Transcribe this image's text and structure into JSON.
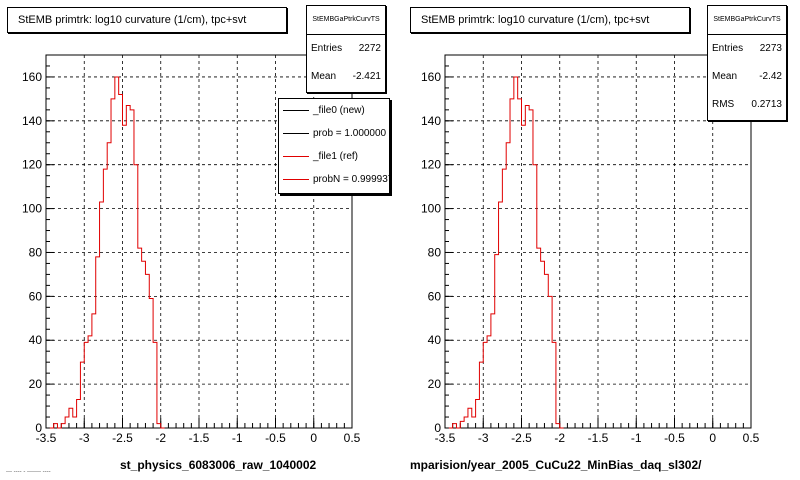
{
  "panels": [
    {
      "title": "StEMB primtrk: log10 curvature (1/cm), tpc+svt",
      "stats": {
        "name": "StEMBGaPtrkCurvTS",
        "rows": [
          {
            "key": "Entries",
            "value": "2272"
          },
          {
            "key": "Mean",
            "value": "-2.421"
          }
        ]
      },
      "legend": [
        {
          "label": "_file0 (new)",
          "color": "#000000"
        },
        {
          "label": "prob = 1.000000",
          "color": "#000000"
        },
        {
          "label": "_file1 (ref)",
          "color": "#e00000"
        },
        {
          "label": "probN = 0.999937",
          "color": "#e00000"
        }
      ],
      "x_axis_name": "st_physics_6083006_raw_1040002"
    },
    {
      "title": "StEMB primtrk: log10 curvature (1/cm), tpc+svt",
      "stats": {
        "name": "StEMBGaPtrkCurvTS",
        "rows": [
          {
            "key": "Entries",
            "value": "2273"
          },
          {
            "key": "Mean",
            "value": "-2.42"
          },
          {
            "key": "RMS",
            "value": "0.2713"
          }
        ]
      },
      "x_axis_name": "mparision/year_2005_CuCu22_MinBias_daq_sl302/"
    }
  ],
  "footnote": "--- ---- - ------- ----",
  "chart_data": [
    {
      "type": "step-histogram",
      "title": "StEMB primtrk: log10 curvature (1/cm), tpc+svt",
      "xlabel": "st_physics_6083006_raw_1040002",
      "ylabel": "",
      "xlim": [
        -3.5,
        0.5
      ],
      "ylim": [
        0,
        170
      ],
      "xticks": [
        -3.5,
        -3,
        -2.5,
        -2,
        -1.5,
        -1,
        -0.5,
        0,
        0.5
      ],
      "yticks": [
        0,
        20,
        40,
        60,
        80,
        100,
        120,
        140,
        160
      ],
      "grid": true,
      "bin_edges_start": -3.45,
      "bin_width": 0.05,
      "series": [
        {
          "name": "_file1 (ref)",
          "color": "#e00000",
          "values": [
            0,
            2,
            0,
            2,
            5,
            9,
            5,
            13,
            30,
            39,
            42,
            52,
            78,
            103,
            118,
            130,
            150,
            160,
            152,
            138,
            147,
            145,
            120,
            82,
            76,
            70,
            59,
            39,
            2,
            0
          ]
        }
      ]
    },
    {
      "type": "step-histogram",
      "title": "StEMB primtrk: log10 curvature (1/cm), tpc+svt",
      "xlabel": "mparision/year_2005_CuCu22_MinBias_daq_sl302/",
      "ylabel": "",
      "xlim": [
        -3.5,
        0.5
      ],
      "ylim": [
        0,
        170
      ],
      "xticks": [
        -3.5,
        -3,
        -2.5,
        -2,
        -1.5,
        -1,
        -0.5,
        0,
        0.5
      ],
      "yticks": [
        0,
        20,
        40,
        60,
        80,
        100,
        120,
        140,
        160
      ],
      "grid": true,
      "bin_edges_start": -3.45,
      "bin_width": 0.05,
      "series": [
        {
          "name": "",
          "color": "#e00000",
          "values": [
            0,
            2,
            0,
            3,
            5,
            9,
            5,
            13,
            30,
            39,
            42,
            52,
            79,
            103,
            118,
            130,
            150,
            160,
            150,
            138,
            147,
            145,
            120,
            82,
            76,
            70,
            60,
            39,
            2,
            0
          ]
        }
      ]
    }
  ]
}
